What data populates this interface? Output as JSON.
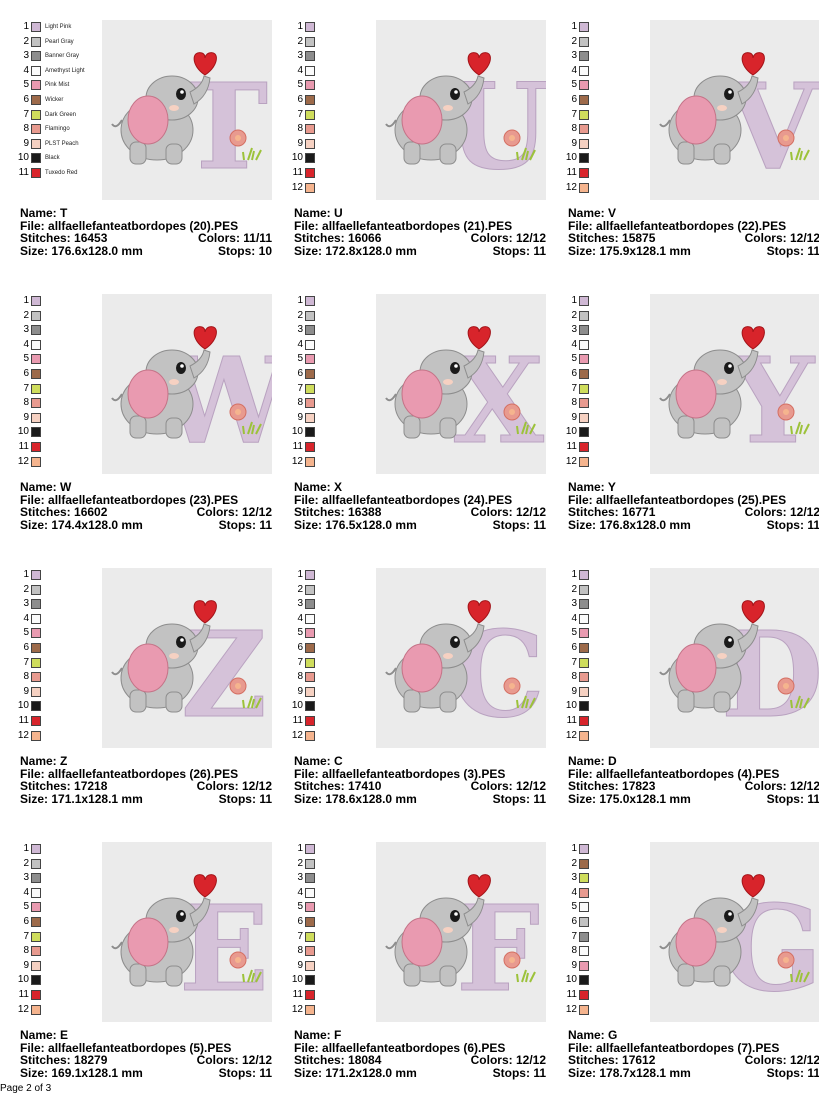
{
  "page": {
    "footer": "Page 2 of 3"
  },
  "colors": {
    "1": "#cfb8d4",
    "2": "#c2c2c2",
    "3": "#8d8d8d",
    "4": "#fbfbfb",
    "5": "#e99ab0",
    "6": "#9d6a4a",
    "7": "#cfdd5c",
    "8": "#e89a8f",
    "9": "#f6d1c2",
    "10": "#1a1a1a",
    "11": "#d8242b",
    "12": "#f5b48e"
  },
  "labels": {
    "name": "Name:",
    "file": "File:",
    "stitches": "Stitches:",
    "colors": "Colors:",
    "size": "Size:",
    "stops": "Stops:"
  },
  "designs": [
    {
      "name": "T",
      "file": "allfaellefanteatbordopes (20).PES",
      "stitches": "16453",
      "colors": "11/11",
      "size": "176.6x128.0 mm",
      "stops": "10",
      "letter": "T",
      "swatches": [
        {
          "n": "1",
          "c": "1",
          "label": "Light Pink"
        },
        {
          "n": "2",
          "c": "2",
          "label": "Pearl Gray"
        },
        {
          "n": "3",
          "c": "3",
          "label": "Banner Gray"
        },
        {
          "n": "4",
          "c": "4",
          "label": "Amethyst Light"
        },
        {
          "n": "5",
          "c": "5",
          "label": "Pink Mist"
        },
        {
          "n": "6",
          "c": "6",
          "label": "Wicker"
        },
        {
          "n": "7",
          "c": "7",
          "label": "Dark Green"
        },
        {
          "n": "8",
          "c": "8",
          "label": "Flamingo"
        },
        {
          "n": "9",
          "c": "9",
          "label": "PLST Peach"
        },
        {
          "n": "10",
          "c": "10",
          "label": "Black"
        },
        {
          "n": "11",
          "c": "11",
          "label": "Tuxedo Red"
        }
      ]
    },
    {
      "name": "U",
      "file": "allfaellefanteatbordopes (21).PES",
      "stitches": "16066",
      "colors": "12/12",
      "size": "172.8x128.0 mm",
      "stops": "11",
      "letter": "U",
      "swatches": [
        {
          "n": "1",
          "c": "1"
        },
        {
          "n": "2",
          "c": "2"
        },
        {
          "n": "3",
          "c": "3"
        },
        {
          "n": "4",
          "c": "4"
        },
        {
          "n": "5",
          "c": "5"
        },
        {
          "n": "6",
          "c": "6"
        },
        {
          "n": "7",
          "c": "7"
        },
        {
          "n": "8",
          "c": "8"
        },
        {
          "n": "9",
          "c": "9"
        },
        {
          "n": "10",
          "c": "10"
        },
        {
          "n": "11",
          "c": "11"
        },
        {
          "n": "12",
          "c": "12"
        }
      ]
    },
    {
      "name": "V",
      "file": "allfaellefanteatbordopes (22).PES",
      "stitches": "15875",
      "colors": "12/12",
      "size": "175.9x128.1 mm",
      "stops": "11",
      "letter": "V",
      "swatches": [
        {
          "n": "1",
          "c": "1"
        },
        {
          "n": "2",
          "c": "2"
        },
        {
          "n": "3",
          "c": "3"
        },
        {
          "n": "4",
          "c": "4"
        },
        {
          "n": "5",
          "c": "5"
        },
        {
          "n": "6",
          "c": "6"
        },
        {
          "n": "7",
          "c": "7"
        },
        {
          "n": "8",
          "c": "8"
        },
        {
          "n": "9",
          "c": "9"
        },
        {
          "n": "10",
          "c": "10"
        },
        {
          "n": "11",
          "c": "11"
        },
        {
          "n": "12",
          "c": "12"
        }
      ]
    },
    {
      "name": "W",
      "file": "allfaellefanteatbordopes (23).PES",
      "stitches": "16602",
      "colors": "12/12",
      "size": "174.4x128.0 mm",
      "stops": "11",
      "letter": "W",
      "swatches": [
        {
          "n": "1",
          "c": "1"
        },
        {
          "n": "2",
          "c": "2"
        },
        {
          "n": "3",
          "c": "3"
        },
        {
          "n": "4",
          "c": "4"
        },
        {
          "n": "5",
          "c": "5"
        },
        {
          "n": "6",
          "c": "6"
        },
        {
          "n": "7",
          "c": "7"
        },
        {
          "n": "8",
          "c": "8"
        },
        {
          "n": "9",
          "c": "9"
        },
        {
          "n": "10",
          "c": "10"
        },
        {
          "n": "11",
          "c": "11"
        },
        {
          "n": "12",
          "c": "12"
        }
      ]
    },
    {
      "name": "X",
      "file": "allfaellefanteatbordopes (24).PES",
      "stitches": "16388",
      "colors": "12/12",
      "size": "176.5x128.0 mm",
      "stops": "11",
      "letter": "X",
      "swatches": [
        {
          "n": "1",
          "c": "1"
        },
        {
          "n": "2",
          "c": "2"
        },
        {
          "n": "3",
          "c": "3"
        },
        {
          "n": "4",
          "c": "4"
        },
        {
          "n": "5",
          "c": "5"
        },
        {
          "n": "6",
          "c": "6"
        },
        {
          "n": "7",
          "c": "7"
        },
        {
          "n": "8",
          "c": "8"
        },
        {
          "n": "9",
          "c": "9"
        },
        {
          "n": "10",
          "c": "10"
        },
        {
          "n": "11",
          "c": "11"
        },
        {
          "n": "12",
          "c": "12"
        }
      ]
    },
    {
      "name": "Y",
      "file": "allfaellefanteatbordopes (25).PES",
      "stitches": "16771",
      "colors": "12/12",
      "size": "176.8x128.0 mm",
      "stops": "11",
      "letter": "Y",
      "swatches": [
        {
          "n": "1",
          "c": "1"
        },
        {
          "n": "2",
          "c": "2"
        },
        {
          "n": "3",
          "c": "3"
        },
        {
          "n": "4",
          "c": "4"
        },
        {
          "n": "5",
          "c": "5"
        },
        {
          "n": "6",
          "c": "6"
        },
        {
          "n": "7",
          "c": "7"
        },
        {
          "n": "8",
          "c": "8"
        },
        {
          "n": "9",
          "c": "9"
        },
        {
          "n": "10",
          "c": "10"
        },
        {
          "n": "11",
          "c": "11"
        },
        {
          "n": "12",
          "c": "12"
        }
      ]
    },
    {
      "name": "Z",
      "file": "allfaellefanteatbordopes (26).PES",
      "stitches": "17218",
      "colors": "12/12",
      "size": "171.1x128.1 mm",
      "stops": "11",
      "letter": "Z",
      "swatches": [
        {
          "n": "1",
          "c": "1"
        },
        {
          "n": "2",
          "c": "2"
        },
        {
          "n": "3",
          "c": "3"
        },
        {
          "n": "4",
          "c": "4"
        },
        {
          "n": "5",
          "c": "5"
        },
        {
          "n": "6",
          "c": "6"
        },
        {
          "n": "7",
          "c": "7"
        },
        {
          "n": "8",
          "c": "8"
        },
        {
          "n": "9",
          "c": "9"
        },
        {
          "n": "10",
          "c": "10"
        },
        {
          "n": "11",
          "c": "11"
        },
        {
          "n": "12",
          "c": "12"
        }
      ]
    },
    {
      "name": "C",
      "file": "allfaellefanteatbordopes (3).PES",
      "stitches": "17410",
      "colors": "12/12",
      "size": "178.6x128.0 mm",
      "stops": "11",
      "letter": "C",
      "swatches": [
        {
          "n": "1",
          "c": "1"
        },
        {
          "n": "2",
          "c": "2"
        },
        {
          "n": "3",
          "c": "3"
        },
        {
          "n": "4",
          "c": "4"
        },
        {
          "n": "5",
          "c": "5"
        },
        {
          "n": "6",
          "c": "6"
        },
        {
          "n": "7",
          "c": "7"
        },
        {
          "n": "8",
          "c": "8"
        },
        {
          "n": "9",
          "c": "9"
        },
        {
          "n": "10",
          "c": "10"
        },
        {
          "n": "11",
          "c": "11"
        },
        {
          "n": "12",
          "c": "12"
        }
      ]
    },
    {
      "name": "D",
      "file": "allfaellefanteatbordopes (4).PES",
      "stitches": "17823",
      "colors": "12/12",
      "size": "175.0x128.1 mm",
      "stops": "11",
      "letter": "D",
      "swatches": [
        {
          "n": "1",
          "c": "1"
        },
        {
          "n": "2",
          "c": "2"
        },
        {
          "n": "3",
          "c": "3"
        },
        {
          "n": "4",
          "c": "4"
        },
        {
          "n": "5",
          "c": "5"
        },
        {
          "n": "6",
          "c": "6"
        },
        {
          "n": "7",
          "c": "7"
        },
        {
          "n": "8",
          "c": "8"
        },
        {
          "n": "9",
          "c": "9"
        },
        {
          "n": "10",
          "c": "10"
        },
        {
          "n": "11",
          "c": "11"
        },
        {
          "n": "12",
          "c": "12"
        }
      ]
    },
    {
      "name": "E",
      "file": "allfaellefanteatbordopes (5).PES",
      "stitches": "18279",
      "colors": "12/12",
      "size": "169.1x128.1 mm",
      "stops": "11",
      "letter": "E",
      "swatches": [
        {
          "n": "1",
          "c": "1"
        },
        {
          "n": "2",
          "c": "2"
        },
        {
          "n": "3",
          "c": "3"
        },
        {
          "n": "4",
          "c": "4"
        },
        {
          "n": "5",
          "c": "5"
        },
        {
          "n": "6",
          "c": "6"
        },
        {
          "n": "7",
          "c": "7"
        },
        {
          "n": "8",
          "c": "8"
        },
        {
          "n": "9",
          "c": "9"
        },
        {
          "n": "10",
          "c": "10"
        },
        {
          "n": "11",
          "c": "11"
        },
        {
          "n": "12",
          "c": "12"
        }
      ]
    },
    {
      "name": "F",
      "file": "allfaellefanteatbordopes (6).PES",
      "stitches": "18084",
      "colors": "12/12",
      "size": "171.2x128.0 mm",
      "stops": "11",
      "letter": "F",
      "swatches": [
        {
          "n": "1",
          "c": "1"
        },
        {
          "n": "2",
          "c": "2"
        },
        {
          "n": "3",
          "c": "3"
        },
        {
          "n": "4",
          "c": "4"
        },
        {
          "n": "5",
          "c": "5"
        },
        {
          "n": "6",
          "c": "6"
        },
        {
          "n": "7",
          "c": "7"
        },
        {
          "n": "8",
          "c": "8"
        },
        {
          "n": "9",
          "c": "9"
        },
        {
          "n": "10",
          "c": "10"
        },
        {
          "n": "11",
          "c": "11"
        },
        {
          "n": "12",
          "c": "12"
        }
      ]
    },
    {
      "name": "G",
      "file": "allfaellefanteatbordopes (7).PES",
      "stitches": "17612",
      "colors": "12/12",
      "size": "178.7x128.1 mm",
      "stops": "11",
      "letter": "G",
      "swatches": [
        {
          "n": "1",
          "c": "1"
        },
        {
          "n": "2",
          "c": "6"
        },
        {
          "n": "3",
          "c": "7"
        },
        {
          "n": "4",
          "c": "8"
        },
        {
          "n": "5",
          "c": "4"
        },
        {
          "n": "6",
          "c": "2"
        },
        {
          "n": "7",
          "c": "3"
        },
        {
          "n": "8",
          "c": "4"
        },
        {
          "n": "9",
          "c": "5"
        },
        {
          "n": "10",
          "c": "10"
        },
        {
          "n": "11",
          "c": "11"
        },
        {
          "n": "12",
          "c": "12"
        }
      ]
    }
  ]
}
